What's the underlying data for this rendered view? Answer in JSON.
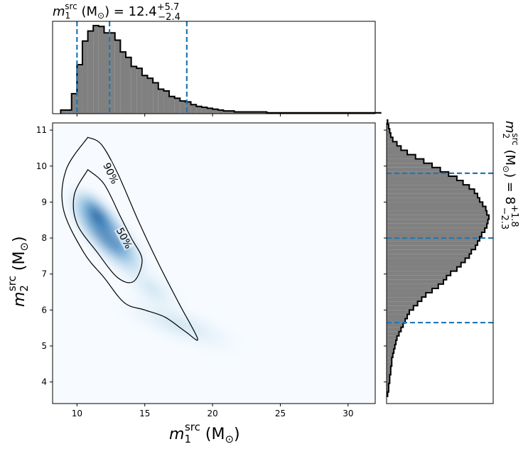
{
  "chart_data": [
    {
      "type": "histogram",
      "panel": "top-marginal",
      "title_var": "m",
      "title_sub": "1",
      "title_sup": "src",
      "title_unit": " (M",
      "title_unit_sub": "⊙",
      "title_eq": ") = 12.4",
      "title_err_up": "+5.7",
      "title_err_dn": "−2.4",
      "xlim": [
        8.2,
        32
      ],
      "bin_edges_start": 8.8,
      "bin_width": 0.4,
      "heights": [
        0.04,
        0.04,
        0.22,
        0.54,
        0.8,
        0.91,
        0.97,
        0.96,
        0.89,
        0.89,
        0.81,
        0.68,
        0.62,
        0.52,
        0.5,
        0.42,
        0.39,
        0.34,
        0.27,
        0.25,
        0.19,
        0.17,
        0.14,
        0.13,
        0.1,
        0.08,
        0.07,
        0.06,
        0.05,
        0.04,
        0.03,
        0.03,
        0.02,
        0.02,
        0.02,
        0.02,
        0.02,
        0.02,
        0.01,
        0.01,
        0.01,
        0.01,
        0.01,
        0.01,
        0.01,
        0.01,
        0.01,
        0.01,
        0.01,
        0.01,
        0.01,
        0.01,
        0.01,
        0.01,
        0.01,
        0.01,
        0.01,
        0.01,
        0.01
      ],
      "quantile_lines": [
        10.0,
        12.4,
        18.1
      ],
      "fill_color": "#808080",
      "line_color": "#1f77b4"
    },
    {
      "type": "heatmap",
      "panel": "joint",
      "xlabel_var": "m",
      "xlabel_sub": "1",
      "xlabel_sup": "src",
      "xlabel_unit": " (M",
      "xlabel_unit_sub": "⊙",
      "xlabel_close": ")",
      "ylabel_var": "m",
      "ylabel_sub": "2",
      "ylabel_sup": "src",
      "ylabel_unit": " (M",
      "ylabel_unit_sub": "⊙",
      "ylabel_close": ")",
      "xlim": [
        8.2,
        32
      ],
      "ylim": [
        3.4,
        11.2
      ],
      "xticks": [
        10,
        15,
        20,
        25,
        30
      ],
      "yticks": [
        4,
        5,
        6,
        7,
        8,
        9,
        10,
        11
      ],
      "colormap": "Blues",
      "contours": [
        {
          "label": "90%",
          "label_at": [
            12.5,
            9.8
          ],
          "label_angle": 65,
          "points": [
            [
              10.8,
              10.8
            ],
            [
              9.2,
              9.9
            ],
            [
              9.0,
              8.8
            ],
            [
              10.5,
              7.6
            ],
            [
              12.0,
              6.9
            ],
            [
              13.5,
              6.2
            ],
            [
              15.0,
              6.0
            ],
            [
              16.5,
              5.8
            ],
            [
              18.0,
              5.4
            ],
            [
              18.9,
              5.2
            ],
            [
              17.5,
              6.2
            ],
            [
              16.0,
              7.3
            ],
            [
              14.5,
              8.5
            ],
            [
              13.0,
              9.8
            ],
            [
              11.8,
              10.6
            ],
            [
              10.8,
              10.8
            ]
          ]
        },
        {
          "label": "50%",
          "label_at": [
            13.5,
            8.0
          ],
          "label_angle": 62,
          "points": [
            [
              10.8,
              9.9
            ],
            [
              9.8,
              9.2
            ],
            [
              10.0,
              8.4
            ],
            [
              11.5,
              7.6
            ],
            [
              13.0,
              6.9
            ],
            [
              14.2,
              6.8
            ],
            [
              14.8,
              7.4
            ],
            [
              14.0,
              8.0
            ],
            [
              13.2,
              8.6
            ],
            [
              12.0,
              9.5
            ],
            [
              10.8,
              9.9
            ]
          ]
        }
      ]
    },
    {
      "type": "histogram",
      "panel": "right-marginal",
      "orientation": "horizontal",
      "title_var": "m",
      "title_sub": "2",
      "title_sup": "src",
      "title_unit": " (M",
      "title_unit_sub": "⊙",
      "title_eq": ") = 8",
      "title_err_up": "+1.8",
      "title_err_dn": "−2.3",
      "ylim": [
        3.4,
        11.2
      ],
      "bin_edges_start": 3.6,
      "bin_width": 0.12,
      "heights": [
        0.01,
        0.02,
        0.02,
        0.03,
        0.03,
        0.04,
        0.04,
        0.05,
        0.05,
        0.06,
        0.07,
        0.08,
        0.09,
        0.1,
        0.12,
        0.14,
        0.16,
        0.18,
        0.2,
        0.22,
        0.26,
        0.3,
        0.34,
        0.38,
        0.44,
        0.5,
        0.55,
        0.58,
        0.62,
        0.68,
        0.72,
        0.76,
        0.8,
        0.82,
        0.86,
        0.88,
        0.9,
        0.92,
        0.95,
        0.97,
        0.98,
        0.99,
        0.97,
        0.96,
        0.93,
        0.9,
        0.88,
        0.85,
        0.8,
        0.74,
        0.68,
        0.6,
        0.52,
        0.44,
        0.36,
        0.28,
        0.2,
        0.14,
        0.1,
        0.06,
        0.04,
        0.03,
        0.02,
        0.01
      ],
      "quantile_lines": [
        5.65,
        8.0,
        9.8
      ],
      "fill_color": "#808080",
      "line_color": "#1f77b4"
    }
  ]
}
